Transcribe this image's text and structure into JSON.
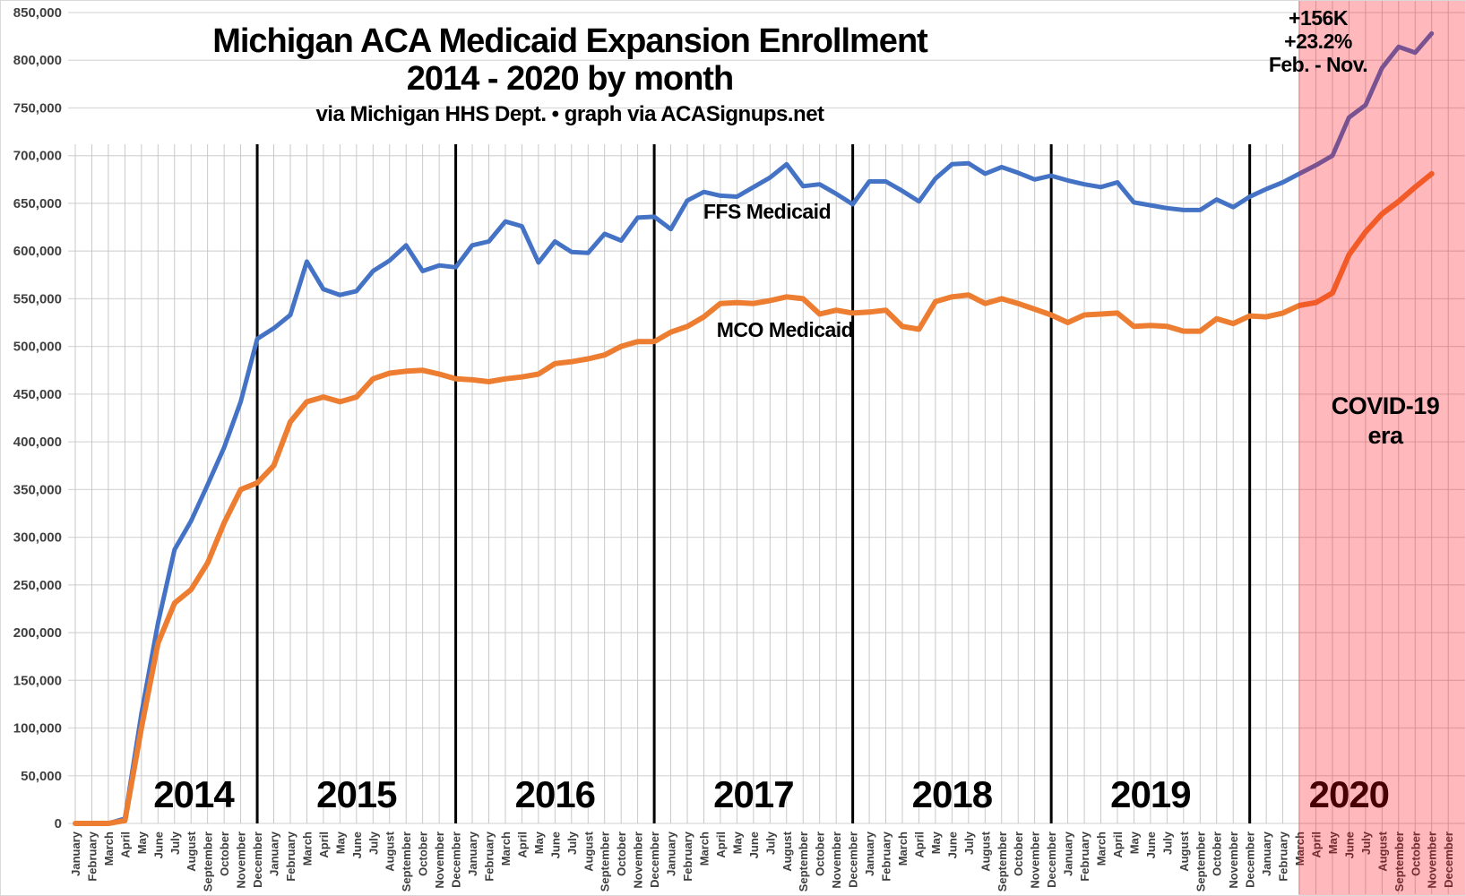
{
  "title": {
    "line1": "Michigan ACA Medicaid Expansion Enrollment",
    "line2": "2014 - 2020 by month",
    "subtitle": "via Michigan HHS Dept. • graph via ACASignups.net"
  },
  "annotations": {
    "growth_line1": "+156K",
    "growth_line2": "+23.2%",
    "growth_line3": "Feb. - Nov.",
    "covid_line1": "COVID-19",
    "covid_line2": "era"
  },
  "chart_data": {
    "type": "line",
    "title": "Michigan ACA Medicaid Expansion Enrollment 2014 - 2020 by month",
    "x_month_names": [
      "January",
      "February",
      "March",
      "April",
      "May",
      "June",
      "July",
      "August",
      "September",
      "October",
      "November",
      "December"
    ],
    "years": [
      "2014",
      "2015",
      "2016",
      "2017",
      "2018",
      "2019",
      "2020"
    ],
    "last_data_month": "November 2020",
    "y_axis": {
      "min": 0,
      "max": 850000,
      "step": 50000
    },
    "grid": "on",
    "series": [
      {
        "name": "FFS Medicaid",
        "color": "#4472C4",
        "values": [
          0,
          0,
          0,
          5000,
          115000,
          210000,
          287000,
          317000,
          355000,
          394000,
          442000,
          508000,
          519000,
          533000,
          589000,
          560000,
          554000,
          558000,
          579000,
          590000,
          606000,
          579000,
          585000,
          583000,
          606000,
          610000,
          631000,
          626000,
          588000,
          610000,
          599000,
          598000,
          618000,
          611000,
          635000,
          636000,
          623000,
          653000,
          662000,
          658000,
          657000,
          667000,
          677000,
          691000,
          668000,
          670000,
          660000,
          649000,
          673000,
          673000,
          663000,
          652000,
          676000,
          691000,
          692000,
          681000,
          688000,
          682000,
          675000,
          679000,
          674000,
          670000,
          667000,
          672000,
          651000,
          648000,
          645000,
          643000,
          643000,
          654000,
          646000,
          657000,
          665000,
          672000,
          681000,
          690000,
          700000,
          740000,
          753000,
          792000,
          814000,
          808000,
          828000
        ]
      },
      {
        "name": "MCO Medicaid",
        "color": "#ED7D31",
        "values": [
          0,
          0,
          0,
          3000,
          100000,
          189000,
          231000,
          245000,
          273000,
          315000,
          350000,
          357000,
          375000,
          421000,
          442000,
          447000,
          442000,
          447000,
          466000,
          472000,
          474000,
          475000,
          471000,
          466000,
          465000,
          463000,
          466000,
          468000,
          471000,
          482000,
          484000,
          487000,
          491000,
          500000,
          505000,
          505000,
          515000,
          521000,
          531000,
          545000,
          546000,
          545000,
          548000,
          552000,
          550000,
          534000,
          538000,
          535000,
          536000,
          538000,
          521000,
          518000,
          547000,
          552000,
          554000,
          545000,
          550000,
          545000,
          539000,
          533000,
          525000,
          533000,
          534000,
          535000,
          521000,
          522000,
          521000,
          516000,
          516000,
          529000,
          524000,
          532000,
          531000,
          535000,
          543000,
          546000,
          556000,
          596000,
          620000,
          639000,
          652000,
          667000,
          681000
        ]
      }
    ],
    "covid_region": {
      "label": "COVID-19 era",
      "start": "March 2020",
      "overlay_color": "rgba(255,0,16,0.28)"
    },
    "colors": {
      "h_gridline": "#d9d9d9",
      "v_gridline": "#c3c3c3",
      "year_divider": "#000000",
      "axis_text": "#404040",
      "month_text": "#3f3f3f",
      "year_text": "#000000"
    }
  }
}
